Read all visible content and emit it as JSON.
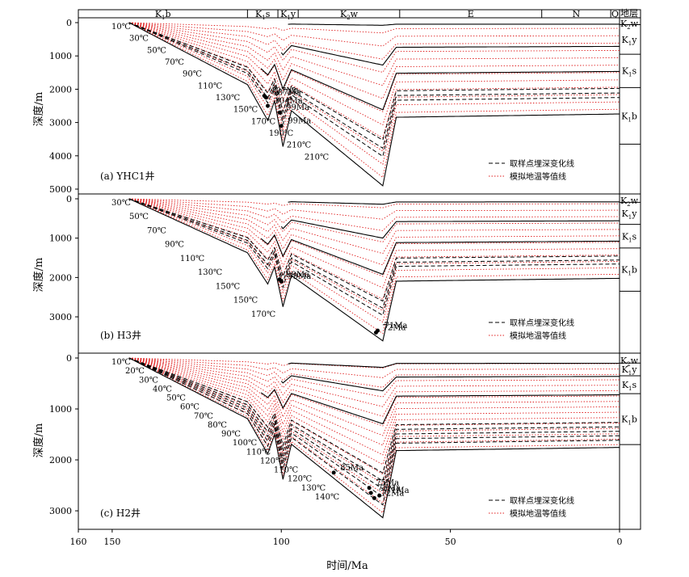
{
  "figure": {
    "x_axis_label": "时间/Ma",
    "y_axis_label": "深度/m",
    "formation_column_header": "地层",
    "legend": {
      "sample_line_label": "取样点埋深变化线",
      "isotherm_label": "模拟地温等值线"
    },
    "colors": {
      "strata_line": "#000000",
      "isotherm": "#e02020",
      "sample_line": "#000000"
    },
    "stratigraphy_header": [
      "K1b",
      "K1s",
      "K1y",
      "K2w",
      "E",
      "N",
      "Q"
    ]
  },
  "chart_data": {
    "type": "line",
    "x_axis": {
      "ticks": [
        160,
        150,
        100,
        50,
        0
      ],
      "direction": "reversed",
      "unit": "Ma"
    },
    "panels": [
      {
        "label": "(a) YHC1井",
        "ylim": [
          0,
          5000
        ],
        "y_ticks": [
          0,
          1000,
          2000,
          3000,
          4000,
          5000
        ],
        "formations": [
          "K2w",
          "K1y",
          "K1s",
          "K1b"
        ],
        "formation_bases_present_m": [
          60,
          950,
          1950,
          3650
        ],
        "isotherm_labels": [
          "10℃",
          "30℃",
          "50℃",
          "70℃",
          "90℃",
          "110℃",
          "130℃",
          "150℃",
          "170℃",
          "190℃",
          "210℃",
          "210℃"
        ],
        "sample_annotations": [
          {
            "label": "107Ma",
            "age": 105,
            "depth": 2200
          },
          {
            "label": "107Ma",
            "age": 104.5,
            "depth": 2250
          },
          {
            "label": "104Ma",
            "age": 104,
            "depth": 2500
          },
          {
            "label": "99Ma",
            "age": 100.5,
            "depth": 2700
          },
          {
            "label": "99Ma",
            "age": 100,
            "depth": 3100
          }
        ]
      },
      {
        "label": "(b) H3井",
        "ylim": [
          0,
          3800
        ],
        "y_ticks": [
          0,
          1000,
          2000,
          3000
        ],
        "formations": [
          "K2w",
          "K1y",
          "K1s",
          "K1b"
        ],
        "formation_bases_present_m": [
          90,
          650,
          1250,
          2350
        ],
        "isotherm_labels": [
          "30℃",
          "50℃",
          "70℃",
          "90℃",
          "110℃",
          "130℃",
          "150℃",
          "150℃",
          "170℃"
        ],
        "sample_annotations": [
          {
            "label": "99Ma",
            "age": 100.5,
            "depth": 2050
          },
          {
            "label": "99Ma",
            "age": 100,
            "depth": 2100
          },
          {
            "label": "71Ma",
            "age": 71.5,
            "depth": 3350
          },
          {
            "label": "72Ma",
            "age": 72,
            "depth": 3400
          }
        ]
      },
      {
        "label": "(c) H2井",
        "ylim": [
          0,
          3300
        ],
        "y_ticks": [
          0,
          1000,
          2000,
          3000
        ],
        "formations": [
          "K2w",
          "K1y",
          "K1s",
          "K1b"
        ],
        "formation_bases_present_m": [
          100,
          350,
          700,
          1700
        ],
        "isotherm_labels": [
          "10℃",
          "20℃",
          "30℃",
          "40℃",
          "50℃",
          "60℃",
          "70℃",
          "80℃",
          "90℃",
          "100℃",
          "110℃",
          "120℃",
          "110℃",
          "120℃",
          "130℃",
          "140℃"
        ],
        "sample_annotations": [
          {
            "label": "85Ma",
            "age": 84.5,
            "depth": 2250
          },
          {
            "label": "75Ma",
            "age": 74,
            "depth": 2550
          },
          {
            "label": "75Ma",
            "age": 73.5,
            "depth": 2650
          },
          {
            "label": "71Ma",
            "age": 71,
            "depth": 2700
          },
          {
            "label": "72Ma",
            "age": 72.5,
            "depth": 2750
          }
        ]
      }
    ]
  }
}
